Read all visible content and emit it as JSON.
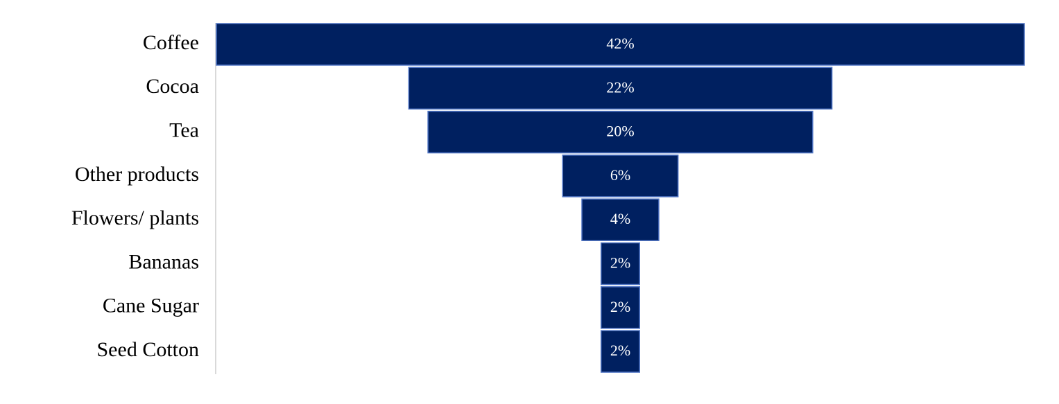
{
  "chart_data": {
    "type": "funnel",
    "categories": [
      "Coffee",
      "Cocoa",
      "Tea",
      "Other products",
      "Flowers/ plants",
      "Bananas",
      "Cane Sugar",
      "Seed Cotton"
    ],
    "values": [
      42,
      22,
      20,
      6,
      4,
      2,
      2,
      2
    ],
    "value_labels": [
      "42%",
      "22%",
      "20%",
      "6%",
      "4%",
      "2%",
      "2%",
      "2%"
    ],
    "color": "#002060"
  }
}
